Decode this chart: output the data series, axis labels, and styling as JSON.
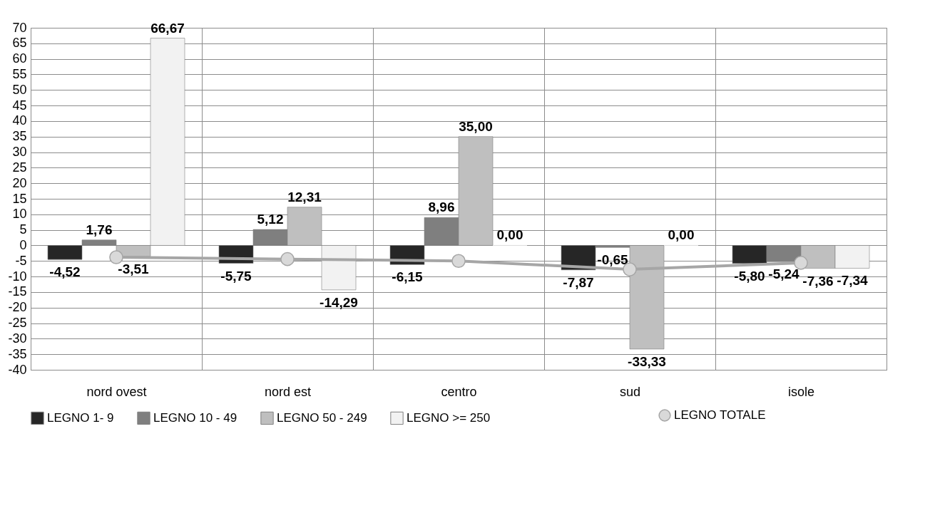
{
  "chart_data": {
    "type": "bar",
    "categories": [
      "nord ovest",
      "nord est",
      "centro",
      "sud",
      "isole"
    ],
    "ylim": [
      -40,
      70
    ],
    "yticks": [
      -40,
      -35,
      -30,
      -25,
      -20,
      -15,
      -10,
      -5,
      0,
      5,
      10,
      15,
      20,
      25,
      30,
      35,
      40,
      45,
      50,
      55,
      60,
      65,
      70
    ],
    "grid": true,
    "legend": "bottom",
    "series": [
      {
        "name": "LEGNO 1- 9",
        "color": "#262626",
        "values": [
          -4.52,
          -5.75,
          -6.15,
          -7.87,
          -5.8
        ],
        "value_labels": [
          "-4,52",
          "-5,75",
          "-6,15",
          "-7,87",
          "-5,80"
        ]
      },
      {
        "name": "LEGNO 10 - 49",
        "color": "#7f7f7f",
        "values": [
          1.76,
          5.12,
          8.96,
          -0.65,
          -5.24
        ],
        "value_labels": [
          "1,76",
          "5,12",
          "8,96",
          "-0,65",
          "-5,24"
        ]
      },
      {
        "name": "LEGNO 50 - 249",
        "color": "#bfbfbf",
        "values": [
          -3.51,
          12.31,
          35.0,
          -33.33,
          -7.36
        ],
        "value_labels": [
          "-3,51",
          "12,31",
          "35,00",
          "-33,33",
          "-7,36"
        ]
      },
      {
        "name": "LEGNO >= 250",
        "color": "#f2f2f2",
        "values": [
          66.67,
          -14.29,
          0.0,
          0.0,
          -7.34
        ],
        "value_labels": [
          "66,67",
          "-14,29",
          "0,00",
          "0,00",
          "-7,34"
        ]
      },
      {
        "name": "LEGNO TOTALE",
        "type": "line",
        "color": "#a6a6a6",
        "marker": "circle",
        "values": [
          -3.8,
          -4.4,
          -5.0,
          -7.7,
          -5.6
        ]
      }
    ]
  }
}
